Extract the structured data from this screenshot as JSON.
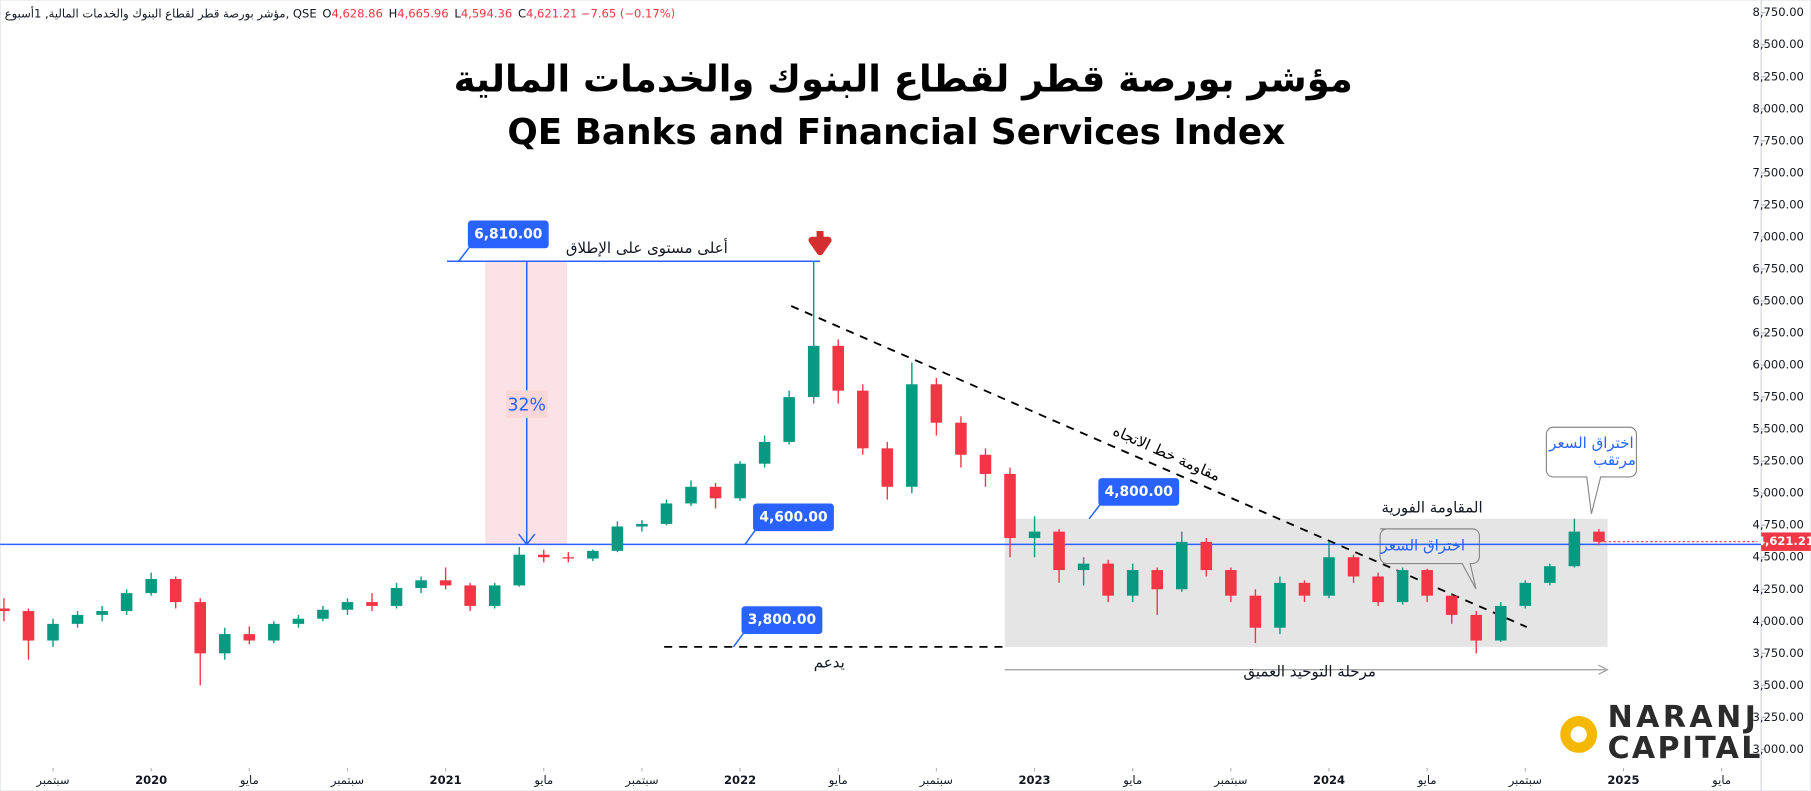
{
  "header": {
    "symbol": "مؤشر بورصة قطر لقطاع البنوك والخدمات المالية, 1أسبوع, QSE",
    "ohlc": [
      {
        "k": "O",
        "v": "4,628.86"
      },
      {
        "k": "H",
        "v": "4,665.96"
      },
      {
        "k": "L",
        "v": "4,594.36"
      },
      {
        "k": "C",
        "v": "4,621.21"
      }
    ],
    "change": "−7.65 (−0.17%)"
  },
  "logo": {
    "line1": "NARANJ",
    "line2": "CAPITAL"
  },
  "chart_data": {
    "type": "candlestick",
    "title": "مؤشر بورصة قطر لقطاع البنوك والخدمات المالية",
    "subtitle": "QE Banks and Financial Services Index",
    "up_color": "#089981",
    "down_color": "#f23645",
    "x": [
      "2019-07",
      "2019-08",
      "2019-09",
      "2019-10",
      "2019-11",
      "2019-12",
      "2020-01",
      "2020-02",
      "2020-03",
      "2020-04",
      "2020-05",
      "2020-06",
      "2020-07",
      "2020-08",
      "2020-09",
      "2020-10",
      "2020-11",
      "2020-12",
      "2021-01",
      "2021-02",
      "2021-03",
      "2021-04",
      "2021-05",
      "2021-06",
      "2021-07",
      "2021-08",
      "2021-09",
      "2021-10",
      "2021-11",
      "2021-12",
      "2022-01",
      "2022-02",
      "2022-03",
      "2022-04",
      "2022-05",
      "2022-06",
      "2022-07",
      "2022-08",
      "2022-09",
      "2022-10",
      "2022-11",
      "2022-12",
      "2023-01",
      "2023-02",
      "2023-03",
      "2023-04",
      "2023-05",
      "2023-06",
      "2023-07",
      "2023-08",
      "2023-09",
      "2023-10",
      "2023-11",
      "2023-12",
      "2024-01",
      "2024-02",
      "2024-03",
      "2024-04",
      "2024-05",
      "2024-06",
      "2024-07",
      "2024-08",
      "2024-09",
      "2024-10",
      "2024-11",
      "2024-12"
    ],
    "open": [
      4100,
      4080,
      3850,
      3980,
      4050,
      4080,
      4220,
      4330,
      4150,
      3750,
      3900,
      3850,
      3980,
      4020,
      4090,
      4150,
      4120,
      4260,
      4320,
      4280,
      4120,
      4280,
      4520,
      4500,
      4490,
      4550,
      4740,
      4760,
      4920,
      5050,
      4960,
      5230,
      5400,
      5750,
      6150,
      5800,
      5350,
      5050,
      5850,
      5550,
      5300,
      5150,
      4650,
      4700,
      4400,
      4450,
      4200,
      4400,
      4250,
      4620,
      4400,
      4200,
      3950,
      4300,
      4200,
      4500,
      4350,
      4150,
      4400,
      4200,
      4050,
      3850,
      4120,
      4300,
      4430,
      4700
    ],
    "high": [
      4180,
      4100,
      4020,
      4080,
      4120,
      4250,
      4380,
      4350,
      4180,
      3950,
      3960,
      4000,
      4050,
      4120,
      4180,
      4220,
      4300,
      4350,
      4420,
      4300,
      4300,
      4580,
      4560,
      4540,
      4560,
      4780,
      4790,
      4950,
      5100,
      5080,
      5250,
      5450,
      5800,
      6810,
      6200,
      5850,
      5400,
      6020,
      5900,
      5600,
      5350,
      5200,
      4820,
      4720,
      4500,
      4480,
      4450,
      4420,
      4700,
      4650,
      4420,
      4250,
      4350,
      4320,
      4620,
      4520,
      4380,
      4420,
      4410,
      4220,
      4080,
      4150,
      4320,
      4450,
      4800,
      4720
    ],
    "low": [
      4000,
      3700,
      3800,
      3950,
      4000,
      4050,
      4200,
      4100,
      3500,
      3700,
      3820,
      3830,
      3950,
      4000,
      4050,
      4080,
      4100,
      4220,
      4250,
      4080,
      4100,
      4270,
      4460,
      4460,
      4470,
      4540,
      4700,
      4750,
      4900,
      4880,
      4940,
      5200,
      5380,
      5700,
      5700,
      5300,
      4950,
      5000,
      5450,
      5200,
      5050,
      4500,
      4500,
      4300,
      4280,
      4150,
      4150,
      4050,
      4230,
      4350,
      4150,
      3830,
      3900,
      4150,
      4180,
      4300,
      4120,
      4130,
      4150,
      3980,
      3750,
      3840,
      4100,
      4280,
      4420,
      4594
    ],
    "close": [
      4080,
      3850,
      3980,
      4050,
      4080,
      4220,
      4330,
      4150,
      3750,
      3900,
      3850,
      3980,
      4020,
      4090,
      4150,
      4120,
      4260,
      4320,
      4280,
      4120,
      4280,
      4520,
      4500,
      4490,
      4550,
      4740,
      4760,
      4920,
      5050,
      4960,
      5230,
      5400,
      5750,
      6150,
      5800,
      5350,
      5050,
      5850,
      5550,
      5300,
      5150,
      4650,
      4700,
      4400,
      4450,
      4200,
      4400,
      4250,
      4620,
      4400,
      4200,
      3950,
      4300,
      4200,
      4500,
      4350,
      4150,
      4400,
      4200,
      4050,
      3850,
      4120,
      4300,
      4430,
      4700,
      4621
    ],
    "xlim": [
      "2019-06",
      "2025-06"
    ],
    "xticks": [
      {
        "value": "2019-09",
        "label": "سبتمبر"
      },
      {
        "value": "2020-01",
        "label": "2020"
      },
      {
        "value": "2020-05",
        "label": "مايو"
      },
      {
        "value": "2020-09",
        "label": "سبتمبر"
      },
      {
        "value": "2021-01",
        "label": "2021"
      },
      {
        "value": "2021-05",
        "label": "مايو"
      },
      {
        "value": "2021-09",
        "label": "سبتمبر"
      },
      {
        "value": "2022-01",
        "label": "2022"
      },
      {
        "value": "2022-05",
        "label": "مايو"
      },
      {
        "value": "2022-09",
        "label": "سبتمبر"
      },
      {
        "value": "2023-01",
        "label": "2023"
      },
      {
        "value": "2023-05",
        "label": "مايو"
      },
      {
        "value": "2023-09",
        "label": "سبتمبر"
      },
      {
        "value": "2024-01",
        "label": "2024"
      },
      {
        "value": "2024-05",
        "label": "مايو"
      },
      {
        "value": "2024-09",
        "label": "سبتمبر"
      },
      {
        "value": "2025-01",
        "label": "2025"
      },
      {
        "value": "2025-05",
        "label": "مايو"
      }
    ],
    "ylim": [
      3000,
      8750
    ],
    "yticks": [
      {
        "value": 3000,
        "label": "3,000.00"
      },
      {
        "value": 3250,
        "label": "3,250.00"
      },
      {
        "value": 3500,
        "label": "3,500.00"
      },
      {
        "value": 3750,
        "label": "3,750.00"
      },
      {
        "value": 4000,
        "label": "4,000.00"
      },
      {
        "value": 4250,
        "label": "4,250.00"
      },
      {
        "value": 4500,
        "label": "4,500.00"
      },
      {
        "value": 4750,
        "label": "4,750.00"
      },
      {
        "value": 5000,
        "label": "5,000.00"
      },
      {
        "value": 5250,
        "label": "5,250.00"
      },
      {
        "value": 5500,
        "label": "5,500.00"
      },
      {
        "value": 5750,
        "label": "5,750.00"
      },
      {
        "value": 6000,
        "label": "6,000.00"
      },
      {
        "value": 6250,
        "label": "6,250.00"
      },
      {
        "value": 6500,
        "label": "6,500.00"
      },
      {
        "value": 6750,
        "label": "6,750.00"
      },
      {
        "value": 7000,
        "label": "7,000.00"
      },
      {
        "value": 7250,
        "label": "7,250.00"
      },
      {
        "value": 7500,
        "label": "7,500.00"
      },
      {
        "value": 7750,
        "label": "7,750.00"
      },
      {
        "value": 8000,
        "label": "8,000.00"
      },
      {
        "value": 8250,
        "label": "8,250.00"
      },
      {
        "value": 8500,
        "label": "8,500.00"
      },
      {
        "value": 8750,
        "label": "8,750.00"
      }
    ],
    "last_price": {
      "value": 4621.21,
      "label": "4,621.21"
    },
    "levels": [
      {
        "value": 6810,
        "label": "6,810.00",
        "text": "أعلى مستوى على الإطلاق"
      },
      {
        "value": 4600,
        "label": "4,600.00"
      },
      {
        "value": 3800,
        "label": "3,800.00",
        "text": "يدعم"
      },
      {
        "value": 4800,
        "label": "4,800.00",
        "text": "المقاومة الفورية"
      }
    ],
    "annotations": {
      "gain": "32%",
      "trendline": "مقاومة خط الاتجاه",
      "breakout": "اختراق السعر",
      "expected_breakout": [
        "اختراق السعر",
        "مرتقب"
      ],
      "consolidation": "مرحلة التوحيد العميق"
    }
  }
}
